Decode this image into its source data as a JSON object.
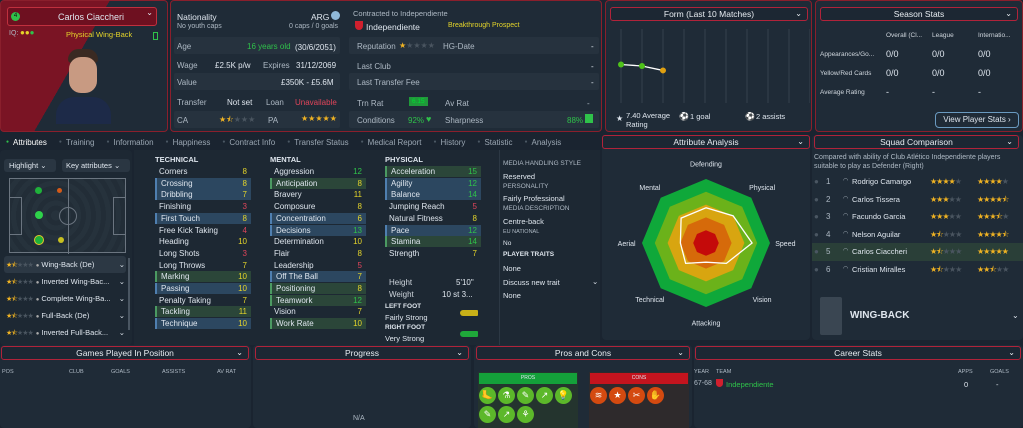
{
  "player": {
    "ca_badge": "4",
    "name": "Carlos Ciaccheri",
    "iq_label": "IQ:",
    "role": "Physical Wing-Back"
  },
  "info": {
    "nationality_label": "Nationality",
    "youth_caps": "No youth caps",
    "nation": "ARG",
    "caps": "0 caps / 0 goals",
    "age_label": "Age",
    "age": "16 years old",
    "dob": "(30/6/2051)",
    "wage_label": "Wage",
    "wage": "£2.5K p/w",
    "expires_label": "Expires",
    "expires": "31/12/2069",
    "value_label": "Value",
    "value": "£350K - £5.6M",
    "transfer_label": "Transfer",
    "transfer": "Not set",
    "loan_label": "Loan",
    "loan": "Unavailable",
    "ca_label": "CA",
    "pa_label": "PA",
    "ca_stars": 1.5,
    "pa_stars": 5,
    "contracted": "Contracted to Independiente",
    "club": "Independiente",
    "prospect": "Breakthrough Prospect",
    "reputation_label": "Reputation",
    "hg_label": "HG-Date",
    "hg": "-",
    "last_club_label": "Last Club",
    "last_club": "-",
    "last_fee_label": "Last Transfer Fee",
    "last_fee": "-",
    "trn_rat_label": "Trn Rat",
    "trn_rat": "6.15",
    "av_rat_label": "Av Rat",
    "av_rat": "-",
    "conditions_label": "Conditions",
    "conditions": "92%",
    "sharpness_label": "Sharpness",
    "sharpness": "88%"
  },
  "form": {
    "title": "Form (Last 10 Matches)",
    "avg": "7.40 Average Rating",
    "goals": "1 goal",
    "assists": "2 assists",
    "ratings": [
      7.6,
      7.5,
      7.2
    ]
  },
  "season": {
    "title": "Season Stats",
    "cols": [
      "Overall (Cl...",
      "League",
      "Internatio..."
    ],
    "rows": [
      {
        "label": "Appearances/Go...",
        "vals": [
          "0/0",
          "0/0",
          "0/0"
        ]
      },
      {
        "label": "Yellow/Red Cards",
        "vals": [
          "0/0",
          "0/0",
          "0/0"
        ]
      },
      {
        "label": "Average Rating",
        "vals": [
          "-",
          "-",
          "-"
        ]
      }
    ],
    "button": "View Player Stats ›"
  },
  "tabs": [
    "Attributes",
    "Training",
    "Information",
    "Happiness",
    "Contract Info",
    "Transfer Status",
    "Medical Report",
    "History",
    "Statistic",
    "Analysis"
  ],
  "left": {
    "highlight": "Highlight ⌄",
    "key_attr": "Key attributes ⌄",
    "roles": [
      {
        "name": "Wing-Back (De)",
        "stars": 1.5
      },
      {
        "name": "Inverted Wing-Bac...",
        "stars": 1.5
      },
      {
        "name": "Complete Wing-Ba...",
        "stars": 1.5
      },
      {
        "name": "Full-Back (De)",
        "stars": 1.5
      },
      {
        "name": "Inverted Full-Back...",
        "stars": 1.5
      }
    ]
  },
  "attributes": {
    "technical": {
      "title": "TECHNICAL",
      "items": [
        [
          "Corners",
          8,
          ""
        ],
        [
          "Crossing",
          8,
          "blue"
        ],
        [
          "Dribbling",
          7,
          "blue"
        ],
        [
          "Finishing",
          3,
          ""
        ],
        [
          "First Touch",
          8,
          "blue"
        ],
        [
          "Free Kick Taking",
          4,
          ""
        ],
        [
          "Heading",
          10,
          ""
        ],
        [
          "Long Shots",
          3,
          ""
        ],
        [
          "Long Throws",
          7,
          ""
        ],
        [
          "Marking",
          10,
          "green"
        ],
        [
          "Passing",
          10,
          "blue"
        ],
        [
          "Penalty Taking",
          7,
          ""
        ],
        [
          "Tackling",
          11,
          "green"
        ],
        [
          "Technique",
          10,
          "blue"
        ]
      ]
    },
    "mental": {
      "title": "MENTAL",
      "items": [
        [
          "Aggression",
          12,
          ""
        ],
        [
          "Anticipation",
          8,
          "green"
        ],
        [
          "Bravery",
          11,
          ""
        ],
        [
          "Composure",
          8,
          ""
        ],
        [
          "Concentration",
          6,
          "blue"
        ],
        [
          "Decisions",
          13,
          "blue"
        ],
        [
          "Determination",
          10,
          ""
        ],
        [
          "Flair",
          8,
          ""
        ],
        [
          "Leadership",
          5,
          ""
        ],
        [
          "Off The Ball",
          7,
          "blue"
        ],
        [
          "Positioning",
          8,
          "green"
        ],
        [
          "Teamwork",
          12,
          "green"
        ],
        [
          "Vision",
          7,
          ""
        ],
        [
          "Work Rate",
          10,
          "green"
        ]
      ]
    },
    "physical": {
      "title": "PHYSICAL",
      "items": [
        [
          "Acceleration",
          15,
          "green"
        ],
        [
          "Agility",
          12,
          "blue"
        ],
        [
          "Balance",
          14,
          "blue"
        ],
        [
          "Jumping Reach",
          5,
          ""
        ],
        [
          "Natural Fitness",
          8,
          ""
        ],
        [
          "Pace",
          12,
          "blue"
        ],
        [
          "Stamina",
          14,
          "green"
        ],
        [
          "Strength",
          7,
          ""
        ]
      ]
    },
    "height_label": "Height",
    "height": "5'10\"",
    "weight_label": "Weight",
    "weight": "10 st 3...",
    "left_foot_label": "LEFT FOOT",
    "left_foot": "Fairly Strong",
    "right_foot_label": "RIGHT FOOT",
    "right_foot": "Very Strong"
  },
  "media": {
    "style_label": "MEDIA HANDLING STYLE",
    "style": "Reserved",
    "personality_label": "PERSONALITY",
    "personality": "Fairly Professional",
    "desc_label": "MEDIA DESCRIPTION",
    "desc": "Centre-back",
    "eu_label": "EU NATIONAL",
    "eu": "No",
    "traits_label": "PLAYER TRAITS",
    "traits": "None",
    "discuss": "Discuss new trait",
    "traits2": "None"
  },
  "analysis": {
    "title": "Attribute Analysis",
    "axes": [
      "Defending",
      "Physical",
      "Speed",
      "Vision",
      "Attacking",
      "Technical",
      "Aerial",
      "Mental"
    ],
    "values": [
      0.55,
      0.6,
      0.72,
      0.45,
      0.3,
      0.45,
      0.4,
      0.55
    ]
  },
  "squad": {
    "title": "Squad Comparison",
    "desc": "Compared with ability of Club Atlético Independiente players suitable to play as Defender (Right)",
    "players": [
      {
        "rank": "1",
        "name": "Rodrigo Camargo",
        "cur": 4,
        "pot": 4
      },
      {
        "rank": "2",
        "name": "Carlos Tissera",
        "cur": 3,
        "pot": 4.5
      },
      {
        "rank": "3",
        "name": "Facundo Garcia",
        "cur": 3,
        "pot": 3.5
      },
      {
        "rank": "4",
        "name": "Nelson Aguilar",
        "cur": 1.5,
        "pot": 4.5
      },
      {
        "rank": "5",
        "name": "Carlos Ciaccheri",
        "cur": 1.5,
        "pot": 5
      },
      {
        "rank": "6",
        "name": "Cristian Miralles",
        "cur": 1.5,
        "pot": 2.5
      }
    ],
    "position": "WING-BACK"
  },
  "games": {
    "title": "Games Played In Position",
    "cols": [
      "POS",
      "CLUB",
      "GOALS",
      "ASSISTS",
      "AV RAT"
    ]
  },
  "progress": {
    "title": "Progress",
    "na": "N/A"
  },
  "proscons": {
    "title": "Pros and Cons",
    "pros": "PROS",
    "cons": "CONS",
    "pros_icons": [
      "🦶",
      "⚗",
      "✎",
      "↗",
      "💡",
      "✎",
      "↗",
      "⚘"
    ],
    "cons_icons": [
      "≋",
      "★",
      "✂",
      "✋"
    ]
  },
  "career": {
    "title": "Career Stats",
    "cols": [
      "YEAR",
      "TEAM",
      "APPS",
      "GOALS"
    ],
    "rows": [
      {
        "year": "67-68",
        "team": "Independiente",
        "apps": "0",
        "goals": "-"
      }
    ]
  },
  "colors": {
    "accent": "#b0233a",
    "green": "#2fc24a",
    "yellow": "#e5d52a",
    "red": "#e0455a"
  }
}
